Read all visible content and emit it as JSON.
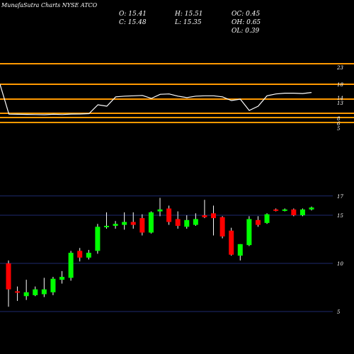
{
  "header": {
    "title": "MunafaSutra Charts NYSE ATCO"
  },
  "ohlc": {
    "O": "O: 15.41",
    "H": "H: 15.51",
    "OC": "OC: 0.45",
    "C": "C: 15.48",
    "L": "L: 15.35",
    "OH": "OH: 0.65",
    "OL": "OL: 0.39"
  },
  "colors": {
    "background": "#000000",
    "up": "#00ff00",
    "down": "#ff0000",
    "indicator_band": "#ff9900",
    "indicator_line": "#ffffff",
    "gridline": "#1e2a6e"
  },
  "chart_data": [
    {
      "type": "line",
      "title": "",
      "ylabel": "",
      "y_ticks": [
        "23",
        "18",
        "14",
        "13",
        "8",
        "6",
        "5"
      ],
      "band_levels": [
        23,
        18,
        14,
        13,
        8,
        6
      ],
      "series": [
        {
          "values": [
            18,
            12,
            11.8,
            11.7,
            11.5,
            11.3,
            11.8,
            11.5,
            12.1,
            12.2,
            12.6,
            13.6,
            13.5,
            14.6,
            14.8,
            14.9,
            15.0,
            14.2,
            15.3,
            15.4,
            14.8,
            14.4,
            14.8,
            14.9,
            14.9,
            14.6,
            13.9,
            14.0,
            13.2,
            13.5,
            14.9,
            15.4,
            15.6,
            15.6,
            15.5,
            15.8
          ]
        }
      ]
    },
    {
      "type": "candlestick",
      "title": "",
      "y_ticks": [
        "17",
        "15",
        "10",
        "5"
      ],
      "ylim": [
        5,
        17.5
      ],
      "candles": [
        {
          "o": 10.0,
          "h": 10.3,
          "l": 5.5,
          "c": 7.3
        },
        {
          "o": 7.1,
          "h": 7.6,
          "l": 6.1,
          "c": 7.0
        },
        {
          "o": 6.6,
          "h": 8.3,
          "l": 6.2,
          "c": 7.0
        },
        {
          "o": 6.7,
          "h": 7.6,
          "l": 6.6,
          "c": 7.3
        },
        {
          "o": 6.8,
          "h": 8.5,
          "l": 6.5,
          "c": 7.3
        },
        {
          "o": 7.0,
          "h": 8.6,
          "l": 6.7,
          "c": 8.4
        },
        {
          "o": 8.3,
          "h": 9.2,
          "l": 7.9,
          "c": 8.6
        },
        {
          "o": 8.5,
          "h": 11.3,
          "l": 8.2,
          "c": 11.1
        },
        {
          "o": 11.3,
          "h": 11.6,
          "l": 10.2,
          "c": 10.6
        },
        {
          "o": 10.6,
          "h": 11.4,
          "l": 10.4,
          "c": 11.1
        },
        {
          "o": 11.3,
          "h": 14.1,
          "l": 11.0,
          "c": 13.8
        },
        {
          "o": 13.8,
          "h": 15.3,
          "l": 13.6,
          "c": 13.9
        },
        {
          "o": 13.9,
          "h": 14.4,
          "l": 13.6,
          "c": 14.1
        },
        {
          "o": 14.0,
          "h": 15.3,
          "l": 13.5,
          "c": 14.3
        },
        {
          "o": 14.3,
          "h": 15.3,
          "l": 13.6,
          "c": 14.0
        },
        {
          "o": 14.7,
          "h": 15.1,
          "l": 12.9,
          "c": 13.2
        },
        {
          "o": 13.2,
          "h": 15.4,
          "l": 13.1,
          "c": 15.3
        },
        {
          "o": 15.4,
          "h": 16.8,
          "l": 14.9,
          "c": 15.6
        },
        {
          "o": 15.7,
          "h": 16.0,
          "l": 14.0,
          "c": 14.3
        },
        {
          "o": 14.6,
          "h": 15.4,
          "l": 13.6,
          "c": 13.9
        },
        {
          "o": 13.8,
          "h": 15.0,
          "l": 13.6,
          "c": 14.5
        },
        {
          "o": 14.0,
          "h": 15.2,
          "l": 13.9,
          "c": 14.6
        },
        {
          "o": 15.0,
          "h": 16.6,
          "l": 14.7,
          "c": 14.8
        },
        {
          "o": 15.2,
          "h": 16.0,
          "l": 12.9,
          "c": 14.7
        },
        {
          "o": 14.8,
          "h": 14.9,
          "l": 12.6,
          "c": 12.8
        },
        {
          "o": 13.4,
          "h": 13.7,
          "l": 10.8,
          "c": 10.9
        },
        {
          "o": 10.8,
          "h": 12.0,
          "l": 10.3,
          "c": 12.0
        },
        {
          "o": 11.9,
          "h": 14.9,
          "l": 11.8,
          "c": 14.6
        },
        {
          "o": 14.5,
          "h": 14.9,
          "l": 13.8,
          "c": 14.0
        },
        {
          "o": 14.2,
          "h": 15.2,
          "l": 14.1,
          "c": 15.1
        },
        {
          "o": 15.6,
          "h": 15.7,
          "l": 15.4,
          "c": 15.5
        },
        {
          "o": 15.5,
          "h": 15.7,
          "l": 15.4,
          "c": 15.6
        },
        {
          "o": 15.6,
          "h": 15.7,
          "l": 14.9,
          "c": 15.0
        },
        {
          "o": 15.0,
          "h": 15.7,
          "l": 14.9,
          "c": 15.6
        },
        {
          "o": 15.6,
          "h": 15.9,
          "l": 15.5,
          "c": 15.8
        }
      ]
    }
  ]
}
